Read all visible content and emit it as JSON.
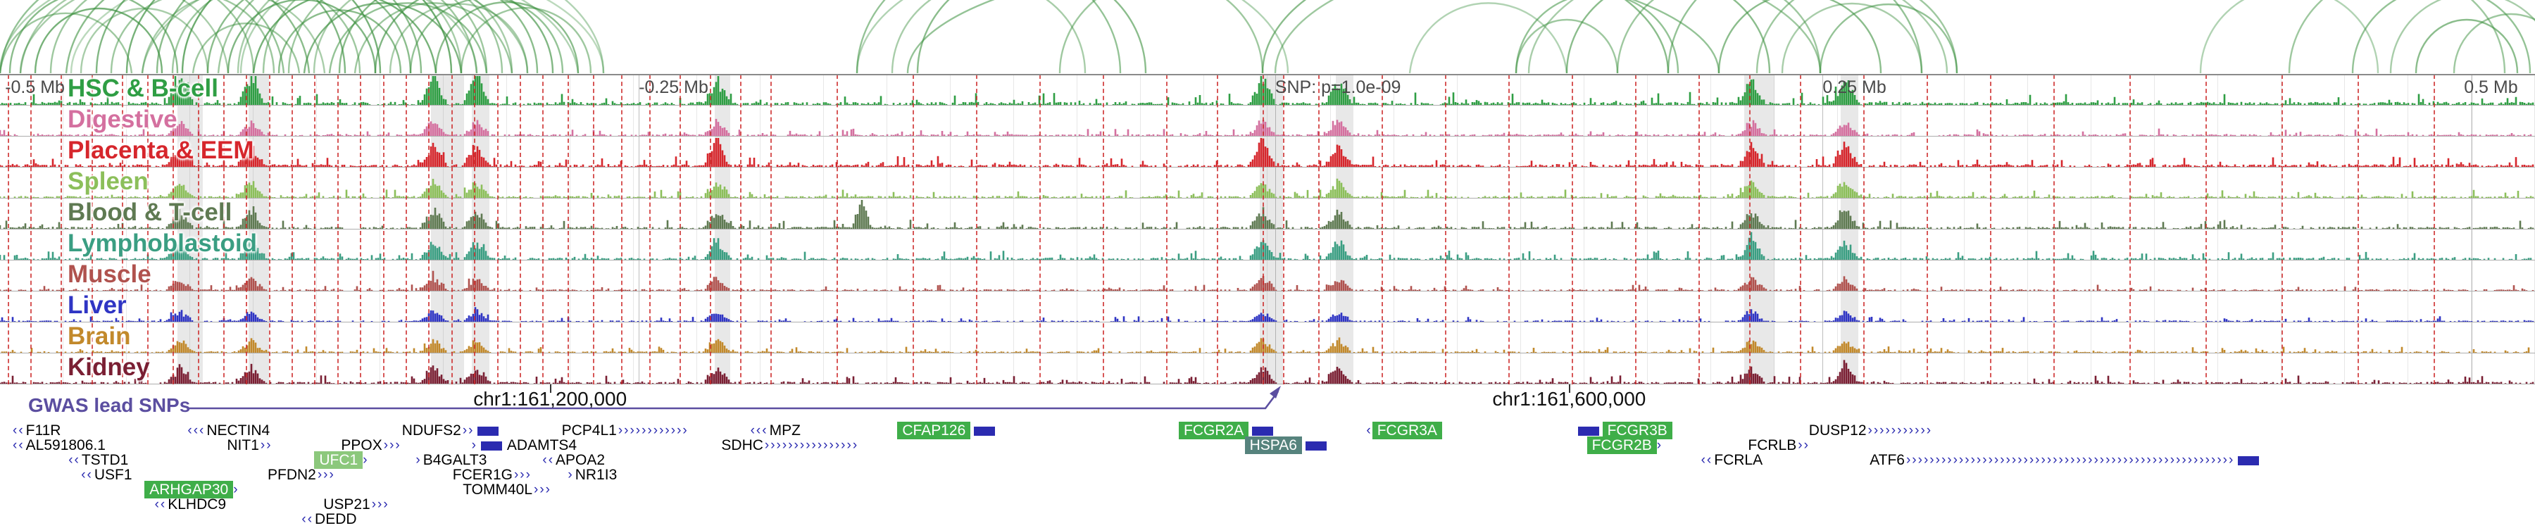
{
  "gwas": {
    "label": "GWAS lead SNPs",
    "color": "#5b4ea0"
  },
  "chart_data": {
    "type": "area",
    "x_axis": {
      "unit": "Mb offset from lead SNP",
      "range": [
        -0.5,
        0.5
      ],
      "labels": [
        {
          "text": "-0.5 Mb",
          "x": 0.002
        },
        {
          "text": "-0.25 Mb",
          "x": 0.252
        },
        {
          "text": "SNP: p=1.0e-09",
          "x": 0.503
        },
        {
          "text": "0.25 Mb",
          "x": 0.719
        },
        {
          "text": "0.5 Mb",
          "x": 0.972
        }
      ]
    },
    "snp": {
      "label": "SNP: p=1.0e-09",
      "x": 0.503
    },
    "coordinates": [
      {
        "text": "chr1:161,200,000",
        "x": 0.217
      },
      {
        "text": "chr1:161,600,000",
        "x": 0.619
      }
    ],
    "tracks": [
      {
        "label": "HSC & B-cell",
        "color": "#2f9e44",
        "scale": 1.4,
        "extra_peaks": [
          0.171,
          0.188
        ]
      },
      {
        "label": "Digestive",
        "color": "#d4709f",
        "scale": 0.8,
        "extra_peaks": []
      },
      {
        "label": "Placenta & EEM",
        "color": "#d6262c",
        "scale": 1.2,
        "extra_peaks": [
          0.283,
          0.498
        ]
      },
      {
        "label": "Spleen",
        "color": "#8cbf5a",
        "scale": 0.9,
        "extra_peaks": []
      },
      {
        "label": "Blood & T-cell",
        "color": "#5f7a52",
        "scale": 1.0,
        "extra_peaks": [
          0.34
        ]
      },
      {
        "label": "Lymphoblastoid",
        "color": "#3a9e82",
        "scale": 1.0,
        "extra_peaks": [
          0.691
        ]
      },
      {
        "label": "Muscle",
        "color": "#b0524e",
        "scale": 0.7,
        "extra_peaks": []
      },
      {
        "label": "Liver",
        "color": "#2f35c4",
        "scale": 0.6,
        "extra_peaks": []
      },
      {
        "label": "Brain",
        "color": "#c2892b",
        "scale": 0.7,
        "extra_peaks": []
      },
      {
        "label": "Kidney",
        "color": "#7a1f33",
        "scale": 0.9,
        "extra_peaks": [
          0.728
        ]
      }
    ],
    "hotspots": [
      0.071,
      0.099,
      0.171,
      0.188,
      0.283,
      0.498,
      0.528,
      0.691,
      0.728
    ],
    "red_dashed_lines": [
      0.003,
      0.012,
      0.024,
      0.036,
      0.048,
      0.058,
      0.068,
      0.078,
      0.088,
      0.097,
      0.106,
      0.115,
      0.124,
      0.133,
      0.142,
      0.151,
      0.16,
      0.169,
      0.178,
      0.187,
      0.196,
      0.205,
      0.214,
      0.224,
      0.234,
      0.245,
      0.256,
      0.268,
      0.28,
      0.292,
      0.304,
      0.33,
      0.36,
      0.385,
      0.41,
      0.435,
      0.46,
      0.48,
      0.498,
      0.506,
      0.52,
      0.545,
      0.57,
      0.595,
      0.62,
      0.645,
      0.67,
      0.69,
      0.71,
      0.735,
      0.76,
      0.785,
      0.81,
      0.84,
      0.87,
      0.9,
      0.93,
      0.96
    ],
    "highlight_bands": [
      [
        0.07,
        0.01
      ],
      [
        0.098,
        0.008
      ],
      [
        0.17,
        0.013
      ],
      [
        0.186,
        0.007
      ],
      [
        0.282,
        0.006
      ],
      [
        0.497,
        0.009
      ],
      [
        0.527,
        0.007
      ],
      [
        0.688,
        0.012
      ],
      [
        0.726,
        0.007
      ]
    ],
    "grid_ticks": [
      0.252,
      0.503,
      0.719,
      0.975
    ],
    "arcs": {
      "color": "#3d9140",
      "list": [
        [
          0.0,
          0.052,
          0.5
        ],
        [
          0.004,
          0.07,
          0.6
        ],
        [
          0.008,
          0.09,
          0.45
        ],
        [
          0.0,
          0.112,
          0.55
        ],
        [
          0.014,
          0.064,
          0.7
        ],
        [
          0.02,
          0.1,
          0.5
        ],
        [
          0.026,
          0.122,
          0.6
        ],
        [
          0.032,
          0.082,
          0.45
        ],
        [
          0.038,
          0.136,
          0.65
        ],
        [
          0.044,
          0.108,
          0.5
        ],
        [
          0.05,
          0.15,
          0.7
        ],
        [
          0.056,
          0.128,
          0.45
        ],
        [
          0.062,
          0.166,
          0.6
        ],
        [
          0.068,
          0.142,
          0.5
        ],
        [
          0.072,
          0.178,
          0.75
        ],
        [
          0.076,
          0.118,
          0.5
        ],
        [
          0.082,
          0.162,
          0.6
        ],
        [
          0.086,
          0.188,
          0.5
        ],
        [
          0.09,
          0.148,
          0.65
        ],
        [
          0.094,
          0.182,
          0.45
        ],
        [
          0.1,
          0.172,
          0.7
        ],
        [
          0.104,
          0.192,
          0.5
        ],
        [
          0.11,
          0.158,
          0.6
        ],
        [
          0.114,
          0.198,
          0.5
        ],
        [
          0.12,
          0.182,
          0.65
        ],
        [
          0.124,
          0.202,
          0.45
        ],
        [
          0.13,
          0.192,
          0.55
        ],
        [
          0.134,
          0.212,
          0.6
        ],
        [
          0.14,
          0.202,
          0.5
        ],
        [
          0.148,
          0.218,
          0.65
        ],
        [
          0.154,
          0.208,
          0.45
        ],
        [
          0.162,
          0.222,
          0.55
        ],
        [
          0.172,
          0.228,
          0.6
        ],
        [
          0.182,
          0.233,
          0.5
        ],
        [
          0.0,
          0.188,
          0.4
        ],
        [
          0.008,
          0.208,
          0.45
        ],
        [
          0.056,
          0.228,
          0.4
        ],
        [
          0.028,
          0.238,
          0.35
        ],
        [
          0.095,
          0.238,
          0.4
        ],
        [
          0.338,
          0.442,
          0.55
        ],
        [
          0.352,
          0.428,
          0.45
        ],
        [
          0.362,
          0.452,
          0.6
        ],
        [
          0.338,
          0.508,
          0.4
        ],
        [
          0.418,
          0.498,
          0.5
        ],
        [
          0.358,
          0.678,
          0.55
        ],
        [
          0.498,
          0.658,
          0.6
        ],
        [
          0.503,
          0.718,
          0.5
        ],
        [
          0.598,
          0.662,
          0.55
        ],
        [
          0.603,
          0.768,
          0.45
        ],
        [
          0.618,
          0.698,
          0.6
        ],
        [
          0.638,
          0.718,
          0.5
        ],
        [
          0.658,
          0.758,
          0.55
        ],
        [
          0.678,
          0.742,
          0.6
        ],
        [
          0.693,
          0.772,
          0.5
        ],
        [
          0.703,
          0.758,
          0.45
        ],
        [
          0.718,
          0.772,
          0.55
        ],
        [
          0.556,
          0.618,
          0.4
        ],
        [
          0.598,
          0.638,
          0.5
        ],
        [
          0.903,
          0.988,
          0.5
        ],
        [
          0.928,
          0.998,
          0.55
        ],
        [
          0.943,
          1.008,
          0.45
        ],
        [
          0.953,
          0.993,
          0.6
        ],
        [
          0.968,
          1.013,
          0.5
        ],
        [
          0.868,
          0.938,
          0.4
        ]
      ]
    },
    "genes": [
      {
        "label": "F11R",
        "x": 0.005,
        "row": 0,
        "hl": null,
        "pre": "‹‹",
        "post": "",
        "box": null
      },
      {
        "label": "NECTIN4",
        "x": 0.074,
        "row": 0,
        "hl": null,
        "pre": "‹‹‹",
        "post": "",
        "box": null
      },
      {
        "label": "NDUFS2",
        "x": 0.158,
        "row": 0,
        "hl": null,
        "pre": "",
        "post": "››",
        "box": "after"
      },
      {
        "label": "PCP4L1",
        "x": 0.221,
        "row": 0,
        "hl": null,
        "pre": "",
        "post": "››››››››››››",
        "box": null
      },
      {
        "label": "MPZ",
        "x": 0.296,
        "row": 0,
        "hl": null,
        "pre": "‹‹‹",
        "post": "",
        "box": null
      },
      {
        "label": "CFAP126",
        "x": 0.354,
        "row": 0,
        "hl": "green",
        "pre": "",
        "post": "",
        "box": "after"
      },
      {
        "label": "FCGR2A",
        "x": 0.465,
        "row": 0,
        "hl": "green",
        "pre": "",
        "post": "",
        "box": "after"
      },
      {
        "label": "FCGR3A",
        "x": 0.539,
        "row": 0,
        "hl": "green",
        "pre": "‹",
        "post": "",
        "box": null
      },
      {
        "label": "FCGR3B",
        "x": 0.621,
        "row": 0,
        "hl": "green",
        "pre": "",
        "post": "",
        "box": "before"
      },
      {
        "label": "DUSP12",
        "x": 0.713,
        "row": 0,
        "hl": null,
        "pre": "",
        "post": "›››››››››››",
        "box": null
      },
      {
        "label": "AL591806.1",
        "x": 0.005,
        "row": 1,
        "hl": null,
        "pre": "‹‹",
        "post": "",
        "box": null
      },
      {
        "label": "NIT1",
        "x": 0.089,
        "row": 1,
        "hl": null,
        "pre": "",
        "post": "››",
        "box": null
      },
      {
        "label": "PPOX",
        "x": 0.134,
        "row": 1,
        "hl": null,
        "pre": "",
        "post": "›››",
        "box": null
      },
      {
        "label": "ADAMTS4",
        "x": 0.186,
        "row": 1,
        "hl": null,
        "pre": "›",
        "post": "",
        "box": "before"
      },
      {
        "label": "SDHC",
        "x": 0.284,
        "row": 1,
        "hl": null,
        "pre": "",
        "post": "››››››››››››››››",
        "box": null
      },
      {
        "label": "HSPA6",
        "x": 0.491,
        "row": 1,
        "hl": "teal",
        "pre": "",
        "post": "",
        "box": "after"
      },
      {
        "label": "FCGR2B",
        "x": 0.626,
        "row": 1,
        "hl": "green",
        "pre": "",
        "post": "›",
        "box": null
      },
      {
        "label": "FCRLB",
        "x": 0.689,
        "row": 1,
        "hl": null,
        "pre": "",
        "post": "››",
        "box": null
      },
      {
        "label": "TSTD1",
        "x": 0.027,
        "row": 2,
        "hl": null,
        "pre": "‹‹",
        "post": "",
        "box": null
      },
      {
        "label": "UFC1",
        "x": 0.124,
        "row": 2,
        "hl": "lightgreen",
        "pre": "",
        "post": "›",
        "box": null
      },
      {
        "label": "B4GALT3",
        "x": 0.164,
        "row": 2,
        "hl": null,
        "pre": "›",
        "post": "",
        "box": null
      },
      {
        "label": "APOA2",
        "x": 0.214,
        "row": 2,
        "hl": null,
        "pre": "‹‹",
        "post": "",
        "box": null
      },
      {
        "label": "FCRLA",
        "x": 0.671,
        "row": 2,
        "hl": null,
        "pre": "‹‹",
        "post": "",
        "box": null
      },
      {
        "label": "ATF6",
        "x": 0.737,
        "row": 2,
        "hl": null,
        "pre": "",
        "post": "››››››››››››››››››››››››››››››››››››››››››››››››››››››››",
        "box": "after"
      },
      {
        "label": "USF1",
        "x": 0.032,
        "row": 3,
        "hl": null,
        "pre": "‹‹",
        "post": "",
        "box": null
      },
      {
        "label": "PFDN2",
        "x": 0.105,
        "row": 3,
        "hl": null,
        "pre": "",
        "post": "›››",
        "box": null
      },
      {
        "label": "FCER1G",
        "x": 0.178,
        "row": 3,
        "hl": null,
        "pre": "",
        "post": "›››",
        "box": null
      },
      {
        "label": "NR1I3",
        "x": 0.224,
        "row": 3,
        "hl": null,
        "pre": "›",
        "post": "",
        "box": null
      },
      {
        "label": "ARHGAP30",
        "x": 0.057,
        "row": 4,
        "hl": "green",
        "pre": "",
        "post": "›",
        "box": null
      },
      {
        "label": "TOMM40L",
        "x": 0.182,
        "row": 4,
        "hl": null,
        "pre": "",
        "post": "›››",
        "box": null
      },
      {
        "label": "KLHDC9",
        "x": 0.061,
        "row": 5,
        "hl": null,
        "pre": "‹‹",
        "post": "",
        "box": null
      },
      {
        "label": "USP21",
        "x": 0.127,
        "row": 5,
        "hl": null,
        "pre": "",
        "post": "›››",
        "box": null
      },
      {
        "label": "DEDD",
        "x": 0.119,
        "row": 6,
        "hl": null,
        "pre": "‹‹",
        "post": "",
        "box": null
      }
    ]
  }
}
